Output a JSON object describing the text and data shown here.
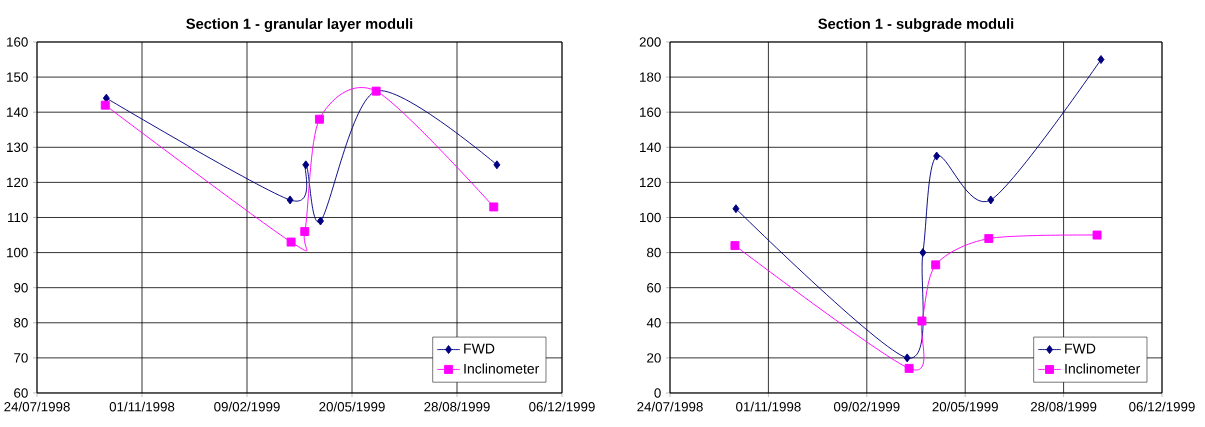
{
  "chart_data": [
    {
      "type": "line",
      "title": "Section 1 - granular layer moduli",
      "xlim": [
        "1998-07-24",
        "1999-12-06"
      ],
      "xticks": [
        {
          "value": "1998-07-24",
          "label": "24/07/1998"
        },
        {
          "value": "1998-11-01",
          "label": "01/11/1998"
        },
        {
          "value": "1999-02-09",
          "label": "09/02/1999"
        },
        {
          "value": "1999-05-20",
          "label": "20/05/1999"
        },
        {
          "value": "1999-08-28",
          "label": "28/08/1999"
        },
        {
          "value": "1999-12-06",
          "label": "06/12/1999"
        }
      ],
      "ylim": [
        60,
        160
      ],
      "yticks": [
        60,
        70,
        80,
        90,
        100,
        110,
        120,
        130,
        140,
        150,
        160
      ],
      "grid": true,
      "legend": "bottom right",
      "line_style": "solid",
      "series": [
        {
          "name": "FWD",
          "color": "#000080",
          "marker": "diamond",
          "x": [
            "1998-09-28",
            "1999-03-22",
            "1999-04-06",
            "1999-04-20",
            "1999-06-12",
            "1999-10-05"
          ],
          "values": [
            144,
            115,
            125,
            109,
            146,
            125
          ]
        },
        {
          "name": "Inclinometer",
          "color": "#ff00ff",
          "marker": "square",
          "x": [
            "1998-09-27",
            "1999-03-23",
            "1999-04-05",
            "1999-04-19",
            "1999-06-12",
            "1999-10-02"
          ],
          "values": [
            142,
            103,
            106,
            138,
            146,
            113
          ]
        }
      ]
    },
    {
      "type": "line",
      "title": "Section 1 - subgrade moduli",
      "xlim": [
        "1998-07-24",
        "1999-12-06"
      ],
      "xticks": [
        {
          "value": "1998-07-24",
          "label": "24/07/1998"
        },
        {
          "value": "1998-11-01",
          "label": "01/11/1998"
        },
        {
          "value": "1999-02-09",
          "label": "09/02/1999"
        },
        {
          "value": "1999-05-20",
          "label": "20/05/1999"
        },
        {
          "value": "1999-08-28",
          "label": "28/08/1999"
        },
        {
          "value": "1999-12-06",
          "label": "06/12/1999"
        }
      ],
      "ylim": [
        0,
        200
      ],
      "yticks": [
        0,
        20,
        40,
        60,
        80,
        100,
        120,
        140,
        160,
        180,
        200
      ],
      "grid": true,
      "legend": "bottom right",
      "line_style": "solid",
      "series": [
        {
          "name": "FWD",
          "color": "#000080",
          "marker": "diamond",
          "x": [
            "1998-09-29",
            "1999-03-22",
            "1999-04-07",
            "1999-04-21",
            "1999-06-15",
            "1999-10-05"
          ],
          "values": [
            105,
            20,
            80,
            135,
            110,
            190
          ]
        },
        {
          "name": "Inclinometer",
          "color": "#ff00ff",
          "marker": "square",
          "x": [
            "1998-09-28",
            "1999-03-24",
            "1999-04-06",
            "1999-04-20",
            "1999-06-13",
            "1999-10-01"
          ],
          "values": [
            84,
            14,
            41,
            73,
            88,
            90
          ]
        }
      ]
    }
  ]
}
